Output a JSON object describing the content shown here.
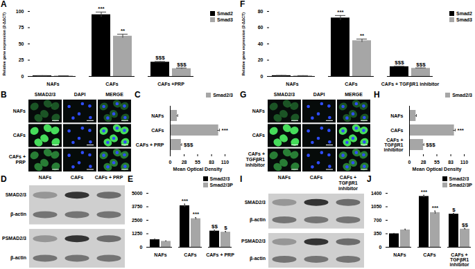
{
  "chart_data": [
    {
      "panel": "A",
      "type": "bar",
      "y_label": "Relative gene expression (2-ΔΔCT)",
      "categories": [
        "NAFs",
        "CAFs",
        "CAFs +PRP"
      ],
      "series": [
        {
          "name": "Smad2",
          "color": "#000000",
          "values": [
            1,
            95,
            22
          ],
          "errors": [
            0.3,
            4,
            1
          ],
          "annotations": [
            null,
            "***",
            "$$$"
          ]
        },
        {
          "name": "Smad3",
          "color": "#a6a6a6",
          "values": [
            0.8,
            62,
            12
          ],
          "errors": [
            0.2,
            3,
            1
          ],
          "annotations": [
            null,
            "**",
            "$$$"
          ]
        }
      ],
      "ylim": [
        0,
        100
      ],
      "yticks": [
        0,
        25,
        50,
        75,
        100
      ],
      "grid": false,
      "legend": "top-right"
    },
    {
      "panel": "C",
      "type": "bar",
      "orientation": "horizontal",
      "x_label": "Mean Optical Density",
      "categories": [
        "NAFs",
        "CAFs",
        "CAFs + PRP"
      ],
      "series": [
        {
          "name": "Smad2/3",
          "color": "#a6a6a6",
          "values": [
            14,
            97,
            22
          ],
          "errors": [
            1,
            2,
            1
          ],
          "annotations": [
            null,
            "***",
            "$$$"
          ]
        }
      ],
      "xlim": [
        0,
        110
      ],
      "xticks": [
        0,
        28,
        55,
        83,
        110
      ],
      "grid": false,
      "legend": "top-right"
    },
    {
      "panel": "E",
      "type": "bar",
      "categories": [
        "NAFs",
        "CAFs",
        "CAFs + PRP"
      ],
      "series": [
        {
          "name": "Smad2/3",
          "color": "#000000",
          "values": [
            700,
            3850,
            1500
          ],
          "errors": [
            50,
            150,
            80
          ],
          "annotations": [
            null,
            "***",
            "$$"
          ]
        },
        {
          "name": "Smad2/3P",
          "color": "#a6a6a6",
          "values": [
            550,
            2650,
            1400
          ],
          "errors": [
            40,
            100,
            70
          ],
          "annotations": [
            null,
            "***",
            "$"
          ]
        }
      ],
      "ylim": [
        0,
        5000
      ],
      "yticks": [
        0,
        1250,
        2500,
        3750,
        5000
      ],
      "grid": false,
      "legend": "top-right"
    },
    {
      "panel": "F",
      "type": "bar",
      "y_label": "Relative gene expression (2-ΔΔCT)",
      "categories": [
        "NAFs",
        "CAFs",
        "CAFs + TGFβR1 inhibitor"
      ],
      "series": [
        {
          "name": "Smad2",
          "color": "#000000",
          "values": [
            1,
            72,
            12
          ],
          "errors": [
            0.2,
            3,
            0.5
          ],
          "annotations": [
            null,
            "***",
            "$$$"
          ]
        },
        {
          "name": "Smad3",
          "color": "#a6a6a6",
          "values": [
            0.8,
            44,
            10
          ],
          "errors": [
            0.2,
            2,
            0.5
          ],
          "annotations": [
            null,
            "**",
            "$$$"
          ]
        }
      ],
      "ylim": [
        0,
        80
      ],
      "yticks": [
        0,
        20,
        40,
        60,
        80
      ],
      "grid": false,
      "legend": "top-right"
    },
    {
      "panel": "H",
      "type": "bar",
      "orientation": "horizontal",
      "x_label": "Mean Optical Density",
      "categories": [
        "NAFs",
        "CAFs",
        "CAFs + TGFβR1 inhibitor"
      ],
      "series": [
        {
          "name": "Smad2/3",
          "color": "#a6a6a6",
          "values": [
            13,
            90,
            28
          ],
          "errors": [
            1,
            2,
            1
          ],
          "annotations": [
            null,
            "***",
            "$$$"
          ]
        }
      ],
      "xlim": [
        0,
        110
      ],
      "xticks": [
        0,
        28,
        55,
        83,
        110
      ],
      "grid": false,
      "legend": "top-right"
    },
    {
      "panel": "J",
      "type": "bar",
      "categories": [
        "NAFs",
        "CAFs",
        "CAFs + TGFβR1 inhibitor"
      ],
      "series": [
        {
          "name": "Smad2/3",
          "color": "#000000",
          "values": [
            350,
            1320,
            860
          ],
          "errors": [
            10,
            30,
            20
          ],
          "annotations": [
            null,
            "***",
            "$"
          ]
        },
        {
          "name": "Smad2/3P",
          "color": "#a6a6a6",
          "values": [
            450,
            900,
            470
          ],
          "errors": [
            20,
            40,
            20
          ],
          "annotations": [
            null,
            "***",
            "$$"
          ]
        }
      ],
      "ylim": [
        0,
        1400
      ],
      "yticks": [
        0,
        350,
        700,
        1050,
        1400
      ],
      "grid": false,
      "legend": "top-right"
    }
  ],
  "figure": {
    "panels": [
      {
        "panel": "B",
        "type": "image",
        "columns": [
          "SMAD2/3",
          "DAPI",
          "MERGE"
        ],
        "rows": [
          "NAFs",
          "CAFs",
          "CAFs + PRP"
        ]
      },
      {
        "panel": "D",
        "type": "blot",
        "lanes": [
          "NAFs",
          "CAFs",
          "CAFs + PRP"
        ],
        "blots": [
          {
            "rows": [
              "SMAD2/3",
              "β-actin"
            ]
          },
          {
            "rows": [
              "PSMAD2/3",
              "β-actin"
            ]
          }
        ]
      },
      {
        "panel": "G",
        "type": "image",
        "columns": [
          "SMAD2/3",
          "DAPI",
          "MERGE"
        ],
        "rows": [
          "NAFs",
          "CAFs",
          "CAFs + TGFβR1 inhibitor"
        ]
      },
      {
        "panel": "I",
        "type": "blot",
        "lanes": [
          "NAFs",
          "CAFs",
          "CAFs + TGFβR1 inhibitor"
        ],
        "blots": [
          {
            "rows": [
              "SMAD2/3",
              "β-actin"
            ]
          },
          {
            "rows": [
              "PSMAD2/3",
              "β-actin"
            ]
          }
        ]
      }
    ]
  }
}
